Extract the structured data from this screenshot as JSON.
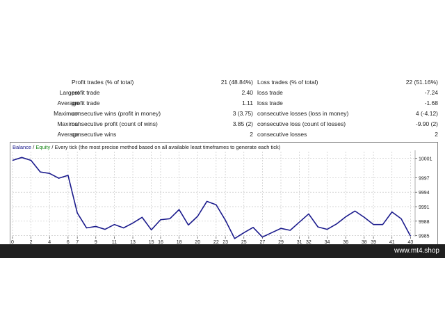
{
  "report": {
    "rows": [
      {
        "left_label": "",
        "label1": "Profit trades (% of total)",
        "value1": "21 (48.84%)",
        "label2": "Loss trades (% of total)",
        "value2": "22 (51.16%)"
      },
      {
        "left_label": "Largest",
        "label1": "profit trade",
        "value1": "2.40",
        "label2": "loss trade",
        "value2": "-7.24"
      },
      {
        "left_label": "Average",
        "label1": "profit trade",
        "value1": "1.11",
        "label2": "loss trade",
        "value2": "-1.68"
      },
      {
        "left_label": "Maximum",
        "label1": "consecutive wins (profit in money)",
        "value1": "3 (3.75)",
        "label2": "consecutive losses (loss in money)",
        "value2": "4 (-4.12)"
      },
      {
        "left_label": "Maximal",
        "label1": "consecutive profit (count of wins)",
        "value1": "3.85 (2)",
        "label2": "consecutive loss (count of losses)",
        "value2": "-9.90 (2)"
      },
      {
        "left_label": "Average",
        "label1": "consecutive wins",
        "value1": "2",
        "label2": "consecutive losses",
        "value2": "2"
      }
    ]
  },
  "chart_legend": {
    "balance": "Balance",
    "separator": " / ",
    "equity": "Equity",
    "rest": " / Every tick (the most precise method based on all available least timeframes to generate each tick)"
  },
  "footer": {
    "site": "www.mt4.shop"
  },
  "colors": {
    "balance_line": "#1a1a8c",
    "equity_label": "#1d8a1d",
    "grid": "#c8c8c8",
    "footer_bg": "#1f1f1f"
  },
  "chart_data": {
    "type": "line",
    "series": [
      {
        "name": "Balance",
        "x": [
          0,
          1,
          2,
          3,
          4,
          5,
          6,
          7,
          8,
          9,
          10,
          11,
          12,
          13,
          14,
          15,
          16,
          17,
          18,
          19,
          20,
          21,
          22,
          23,
          24,
          25,
          26,
          27,
          28,
          29,
          30,
          31,
          32,
          33,
          34,
          35,
          36,
          37,
          38,
          39,
          40,
          41,
          42,
          43
        ],
        "values": [
          10000.6,
          10001.2,
          10000.6,
          9998.2,
          9997.9,
          9996.9,
          9997.5,
          9989.7,
          9986.6,
          9986.9,
          9986.3,
          9987.3,
          9986.6,
          9987.6,
          9988.8,
          9986.2,
          9988.3,
          9988.5,
          9990.4,
          9987.2,
          9989.0,
          9992.1,
          9991.4,
          9988.2,
          9984.4,
          9985.6,
          9986.7,
          9984.7,
          9985.6,
          9986.5,
          9986.1,
          9987.8,
          9989.5,
          9986.8,
          9986.3,
          9987.4,
          9988.9,
          9990.1,
          9988.8,
          9987.3,
          9987.3,
          9989.9,
          9988.5,
          9984.9
        ]
      }
    ],
    "x_ticks": [
      0,
      2,
      4,
      6,
      7,
      9,
      11,
      13,
      15,
      16,
      18,
      20,
      22,
      23,
      25,
      27,
      29,
      31,
      32,
      34,
      36,
      38,
      39,
      41,
      43
    ],
    "y_ticks": [
      10001,
      9997,
      9994,
      9991,
      9988,
      9985
    ],
    "ylim": [
      9984.8,
      10002.4
    ],
    "xlim": [
      0,
      43.5
    ],
    "grid": true
  }
}
